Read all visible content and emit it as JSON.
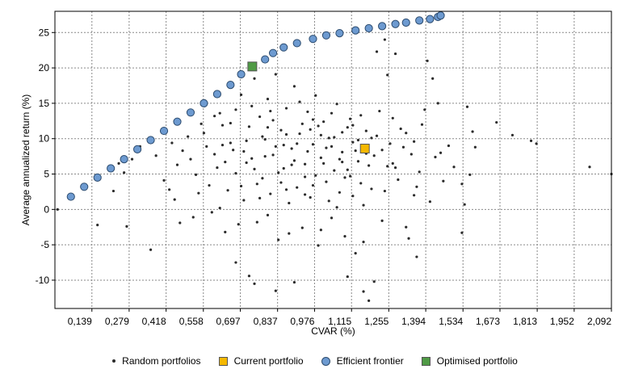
{
  "chart_data": {
    "type": "scatter",
    "title": "",
    "xlabel": "CVAR (%)",
    "ylabel": "Average annualized return (%)",
    "xlim": [
      0,
      2.092
    ],
    "ylim": [
      -14,
      28
    ],
    "x_ticks": [
      0.139,
      0.279,
      0.418,
      0.558,
      0.697,
      0.837,
      0.976,
      1.115,
      1.255,
      1.394,
      1.534,
      1.673,
      1.813,
      1.952,
      2.092
    ],
    "x_tick_labels": [
      "0,139",
      "0,279",
      "0,418",
      "0,558",
      "0,697",
      "0,837",
      "0,976",
      "1,115",
      "1,255",
      "1,394",
      "1,534",
      "1,673",
      "1,813",
      "1,952",
      "2,092"
    ],
    "y_ticks": [
      -10,
      -5,
      0,
      5,
      10,
      15,
      20,
      25
    ],
    "y_tick_labels": [
      "-10",
      "-5",
      "0",
      "5",
      "10",
      "15",
      "20",
      "25"
    ],
    "grid": true,
    "legend_position": "bottom",
    "series": [
      {
        "name": "Random portfolios",
        "marker": "small-dot",
        "color": "#2b2b2b",
        "points": [
          [
            0.01,
            0
          ],
          [
            2.092,
            5
          ],
          [
            2.01,
            6
          ],
          [
            1.72,
            10.5
          ],
          [
            1.79,
            9.7
          ],
          [
            1.81,
            9.3
          ],
          [
            1.66,
            12.3
          ],
          [
            1.57,
            11
          ],
          [
            1.58,
            8.8
          ],
          [
            1.55,
            14.5
          ],
          [
            1.56,
            4.9
          ],
          [
            1.53,
            3.6
          ],
          [
            1.54,
            0.7
          ],
          [
            1.53,
            -3.3
          ],
          [
            1.48,
            9
          ],
          [
            1.45,
            8
          ],
          [
            1.5,
            6
          ],
          [
            1.46,
            4
          ],
          [
            1.44,
            15
          ],
          [
            1.42,
            18.5
          ],
          [
            1.4,
            21
          ],
          [
            1.38,
            12
          ],
          [
            1.35,
            2
          ],
          [
            1.32,
            -2.5
          ],
          [
            1.36,
            -6.7
          ],
          [
            1.28,
            22
          ],
          [
            1.25,
            19
          ],
          [
            1.24,
            24
          ],
          [
            1.21,
            22.3
          ],
          [
            1.18,
            -12.9
          ],
          [
            1.2,
            -10.2
          ],
          [
            1.16,
            -11.6
          ],
          [
            1.1,
            -9.5
          ],
          [
            0.9,
            -10.3
          ],
          [
            0.83,
            -11.5
          ],
          [
            0.75,
            -10.5
          ],
          [
            0.73,
            -9.4
          ],
          [
            0.68,
            -7.5
          ],
          [
            0.36,
            -5.7
          ],
          [
            0.27,
            -2.4
          ],
          [
            0.16,
            -2.2
          ],
          [
            0.16,
            4.3
          ],
          [
            0.22,
            2.6
          ],
          [
            0.26,
            5.2
          ],
          [
            0.24,
            6.5
          ],
          [
            0.29,
            7.1
          ],
          [
            0.32,
            8.9
          ],
          [
            0.35,
            9.8
          ],
          [
            0.4,
            11.1
          ],
          [
            0.43,
            2.8
          ],
          [
            0.46,
            6.3
          ],
          [
            0.5,
            10.3
          ],
          [
            0.52,
            -1.1
          ],
          [
            0.55,
            12.1
          ],
          [
            0.58,
            3.4
          ],
          [
            0.6,
            7.8
          ],
          [
            0.62,
            13.6
          ],
          [
            0.64,
            -3.2
          ],
          [
            0.66,
            9.4
          ],
          [
            0.68,
            5.1
          ],
          [
            0.7,
            16.2
          ],
          [
            0.71,
            1.3
          ],
          [
            0.73,
            11.7
          ],
          [
            0.74,
            7.2
          ],
          [
            0.75,
            18.5
          ],
          [
            0.76,
            -1.8
          ],
          [
            0.77,
            13.1
          ],
          [
            0.78,
            4.4
          ],
          [
            0.79,
            9.9
          ],
          [
            0.8,
            15.6
          ],
          [
            0.81,
            2.2
          ],
          [
            0.82,
            7.7
          ],
          [
            0.83,
            19.1
          ],
          [
            0.84,
            -4.3
          ],
          [
            0.85,
            11.2
          ],
          [
            0.86,
            5.8
          ],
          [
            0.87,
            14.3
          ],
          [
            0.88,
            0.9
          ],
          [
            0.89,
            8.6
          ],
          [
            0.9,
            17.4
          ],
          [
            0.91,
            3.1
          ],
          [
            0.92,
            10.7
          ],
          [
            0.93,
            -2.6
          ],
          [
            0.94,
            6.4
          ],
          [
            0.95,
            13.8
          ],
          [
            0.96,
            1.7
          ],
          [
            0.97,
            9.2
          ],
          [
            0.98,
            16.1
          ],
          [
            0.99,
            -5.1
          ],
          [
            1.0,
            7.3
          ],
          [
            1.01,
            12.4
          ],
          [
            1.02,
            3.9
          ],
          [
            1.03,
            10.1
          ],
          [
            1.04,
            -1.2
          ],
          [
            1.05,
            5.5
          ],
          [
            1.06,
            14.9
          ],
          [
            1.07,
            2.4
          ],
          [
            1.08,
            8.1
          ],
          [
            1.09,
            -3.8
          ],
          [
            1.1,
            11.6
          ],
          [
            1.11,
            4.7
          ],
          [
            1.12,
            9.5
          ],
          [
            1.13,
            -6.2
          ],
          [
            1.14,
            6.8
          ],
          [
            1.15,
            13.3
          ],
          [
            1.16,
            0.6
          ],
          [
            1.17,
            7.9
          ],
          [
            1.19,
            2.9
          ],
          [
            1.21,
            10.4
          ],
          [
            1.23,
            -1.6
          ],
          [
            1.25,
            6.1
          ],
          [
            1.27,
            12.9
          ],
          [
            1.29,
            4.2
          ],
          [
            1.31,
            8.8
          ],
          [
            1.33,
            -4.1
          ],
          [
            1.35,
            9.6
          ],
          [
            1.37,
            5.3
          ],
          [
            1.39,
            14.1
          ],
          [
            1.41,
            1.1
          ],
          [
            1.43,
            7.4
          ],
          [
            0.45,
            1.4
          ],
          [
            0.48,
            8.3
          ],
          [
            0.53,
            4.9
          ],
          [
            0.56,
            10.8
          ],
          [
            0.59,
            -0.4
          ],
          [
            0.61,
            5.9
          ],
          [
            0.63,
            11.9
          ],
          [
            0.65,
            2.7
          ],
          [
            0.67,
            8.4
          ],
          [
            0.69,
            -2.1
          ],
          [
            0.72,
            6.6
          ],
          [
            0.74,
            14.6
          ],
          [
            0.76,
            3.6
          ],
          [
            0.78,
            10.3
          ],
          [
            0.8,
            -0.8
          ],
          [
            0.82,
            12.6
          ],
          [
            0.84,
            5.2
          ],
          [
            0.86,
            9.1
          ],
          [
            0.88,
            -3.4
          ],
          [
            0.9,
            6.9
          ],
          [
            0.92,
            15.2
          ],
          [
            0.94,
            2.1
          ],
          [
            0.96,
            11.3
          ],
          [
            0.98,
            4.8
          ],
          [
            1.0,
            -2.9
          ],
          [
            1.02,
            8.7
          ],
          [
            1.04,
            13.6
          ],
          [
            1.06,
            0.3
          ],
          [
            1.08,
            10.9
          ],
          [
            1.1,
            5.6
          ],
          [
            1.12,
            1.9
          ],
          [
            1.14,
            9.8
          ],
          [
            1.16,
            -4.6
          ],
          [
            1.18,
            6.2
          ],
          [
            0.38,
            7.6
          ],
          [
            0.41,
            4.1
          ],
          [
            0.44,
            9.4
          ],
          [
            0.47,
            -1.9
          ],
          [
            0.51,
            7.1
          ],
          [
            0.54,
            2.3
          ],
          [
            0.57,
            8.9
          ],
          [
            0.6,
            13.2
          ],
          [
            0.62,
            0.2
          ],
          [
            0.64,
            6.7
          ],
          [
            0.66,
            12.2
          ],
          [
            0.7,
            3.3
          ],
          [
            0.72,
            9.7
          ],
          [
            0.77,
            1.6
          ],
          [
            0.79,
            7.5
          ],
          [
            0.81,
            13.9
          ],
          [
            0.85,
            3.8
          ],
          [
            0.87,
            10.6
          ],
          [
            0.89,
            6.3
          ],
          [
            0.93,
            12.1
          ],
          [
            0.95,
            8.2
          ],
          [
            0.97,
            3.4
          ],
          [
            0.99,
            11.8
          ],
          [
            1.01,
            6.5
          ],
          [
            1.03,
            1.2
          ],
          [
            1.05,
            10.2
          ],
          [
            1.07,
            7.1
          ],
          [
            1.09,
            4.5
          ],
          [
            1.11,
            12.8
          ],
          [
            1.13,
            8.3
          ],
          [
            1.15,
            3.7
          ],
          [
            1.17,
            11.1
          ],
          [
            1.2,
            7.6
          ],
          [
            1.22,
            13.9
          ],
          [
            1.24,
            2.6
          ],
          [
            1.26,
            9.3
          ],
          [
            1.28,
            5.9
          ],
          [
            1.3,
            11.4
          ],
          [
            1.34,
            7.8
          ],
          [
            1.36,
            3.2
          ],
          [
            0.63,
            9.1
          ],
          [
            0.68,
            14.1
          ],
          [
            0.71,
            8.2
          ],
          [
            0.75,
            5.7
          ],
          [
            0.8,
            11.6
          ],
          [
            0.83,
            8.9
          ],
          [
            0.87,
            2.8
          ],
          [
            0.91,
            9.3
          ],
          [
            0.94,
            4.6
          ],
          [
            0.97,
            12.7
          ],
          [
            1.0,
            10.5
          ],
          [
            1.04,
            8.9
          ],
          [
            1.08,
            6.7
          ],
          [
            1.12,
            11.9
          ],
          [
            1.19,
            10.1
          ],
          [
            1.23,
            8.4
          ],
          [
            1.27,
            6.5
          ],
          [
            1.32,
            10.8
          ]
        ]
      },
      {
        "name": "Current portfolio",
        "marker": "square",
        "color": "#f5b800",
        "points": [
          [
            1.165,
            8.6
          ]
        ]
      },
      {
        "name": "Efficient frontier",
        "marker": "circle",
        "color": "#6d9ad0",
        "points": [
          [
            0.06,
            1.8
          ],
          [
            0.11,
            3.2
          ],
          [
            0.16,
            4.5
          ],
          [
            0.21,
            5.8
          ],
          [
            0.26,
            7.1
          ],
          [
            0.31,
            8.5
          ],
          [
            0.36,
            9.8
          ],
          [
            0.41,
            11.1
          ],
          [
            0.46,
            12.4
          ],
          [
            0.51,
            13.7
          ],
          [
            0.56,
            15.0
          ],
          [
            0.61,
            16.3
          ],
          [
            0.66,
            17.6
          ],
          [
            0.7,
            19.1
          ],
          [
            0.79,
            21.2
          ],
          [
            0.82,
            22.1
          ],
          [
            0.86,
            22.9
          ],
          [
            0.91,
            23.5
          ],
          [
            0.97,
            24.1
          ],
          [
            1.02,
            24.6
          ],
          [
            1.07,
            24.9
          ],
          [
            1.13,
            25.3
          ],
          [
            1.18,
            25.6
          ],
          [
            1.23,
            25.9
          ],
          [
            1.28,
            26.2
          ],
          [
            1.32,
            26.4
          ],
          [
            1.37,
            26.7
          ],
          [
            1.41,
            26.9
          ],
          [
            1.44,
            27.2
          ],
          [
            1.45,
            27.4
          ]
        ]
      },
      {
        "name": "Optimised portfolio",
        "marker": "square",
        "color": "#4f9a45",
        "points": [
          [
            0.742,
            20.2
          ]
        ]
      }
    ]
  },
  "legend": {
    "random": "Random portfolios",
    "current": "Current portfolio",
    "frontier": "Efficient frontier",
    "optimised": "Optimised portfolio"
  }
}
